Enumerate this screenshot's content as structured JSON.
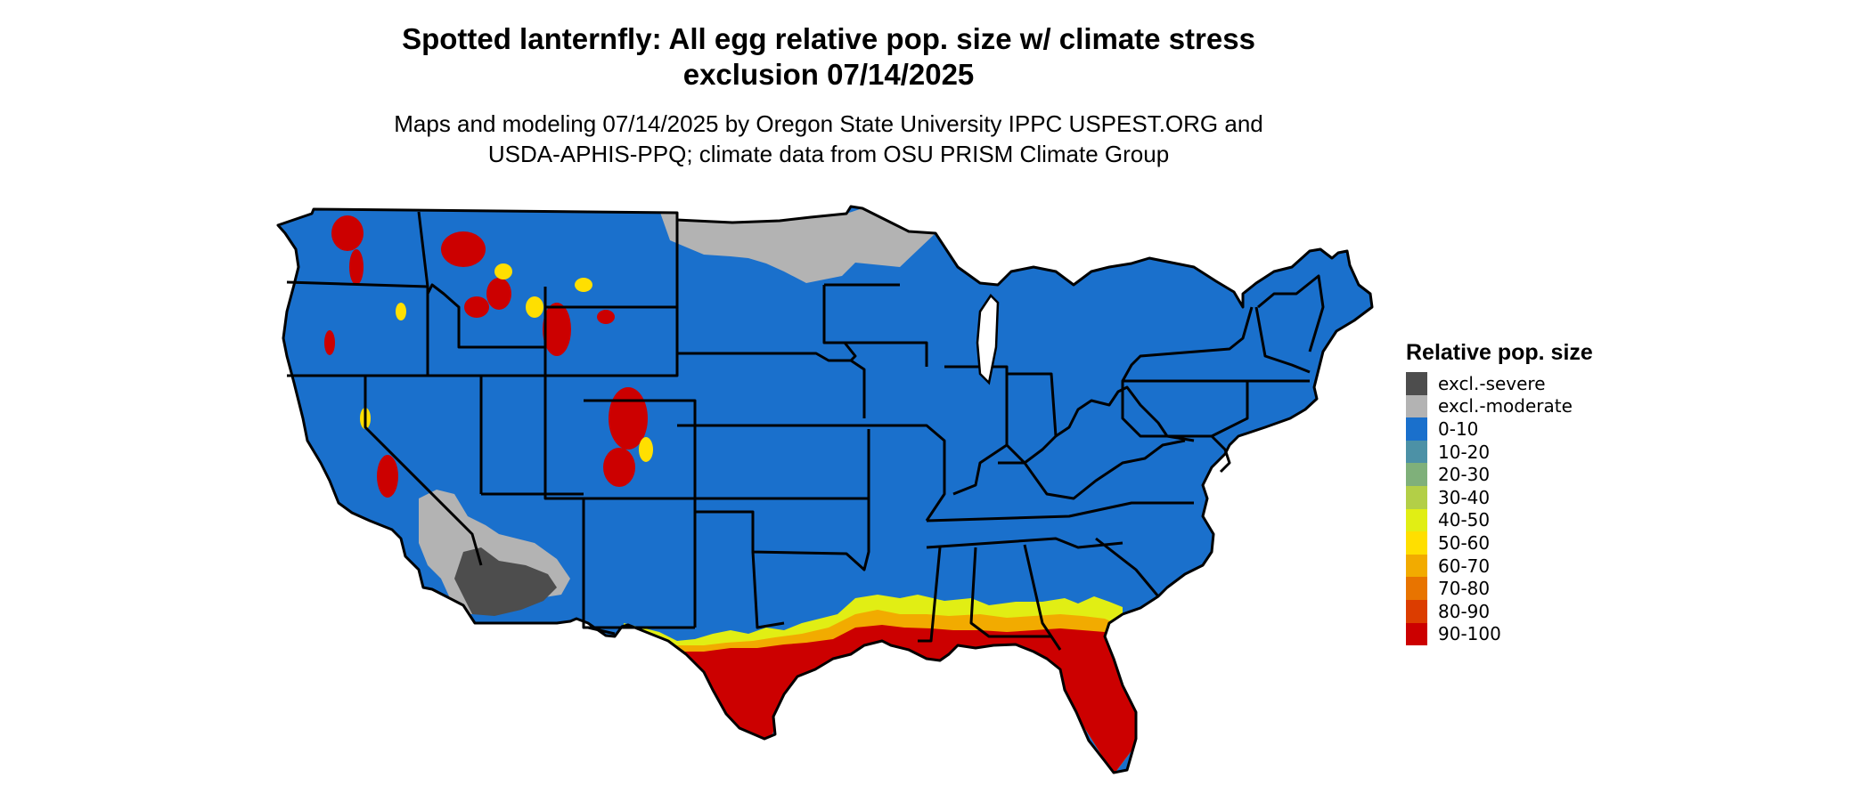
{
  "title_line1": "Spotted lanternfly: All egg relative pop. size w/ climate stress",
  "title_line2": "exclusion 07/14/2025",
  "subtitle_line1": "Maps and modeling 07/14/2025 by Oregon State University IPPC USPEST.ORG and",
  "subtitle_line2": "USDA-APHIS-PPQ; climate data from OSU PRISM Climate Group",
  "legend": {
    "title": "Relative pop. size",
    "items": [
      {
        "label": "excl.-severe",
        "color": "#4d4d4d"
      },
      {
        "label": "excl.-moderate",
        "color": "#b3b3b3"
      },
      {
        "label": "0-10",
        "color": "#1a70cc"
      },
      {
        "label": "10-20",
        "color": "#4c91a6"
      },
      {
        "label": "20-30",
        "color": "#7fb07a"
      },
      {
        "label": "30-40",
        "color": "#b3cf47"
      },
      {
        "label": "40-50",
        "color": "#e1ee14"
      },
      {
        "label": "50-60",
        "color": "#ffdf00"
      },
      {
        "label": "60-70",
        "color": "#f2ab00"
      },
      {
        "label": "70-80",
        "color": "#e87400"
      },
      {
        "label": "80-90",
        "color": "#dc3d00"
      },
      {
        "label": "90-100",
        "color": "#cc0000"
      }
    ]
  }
}
